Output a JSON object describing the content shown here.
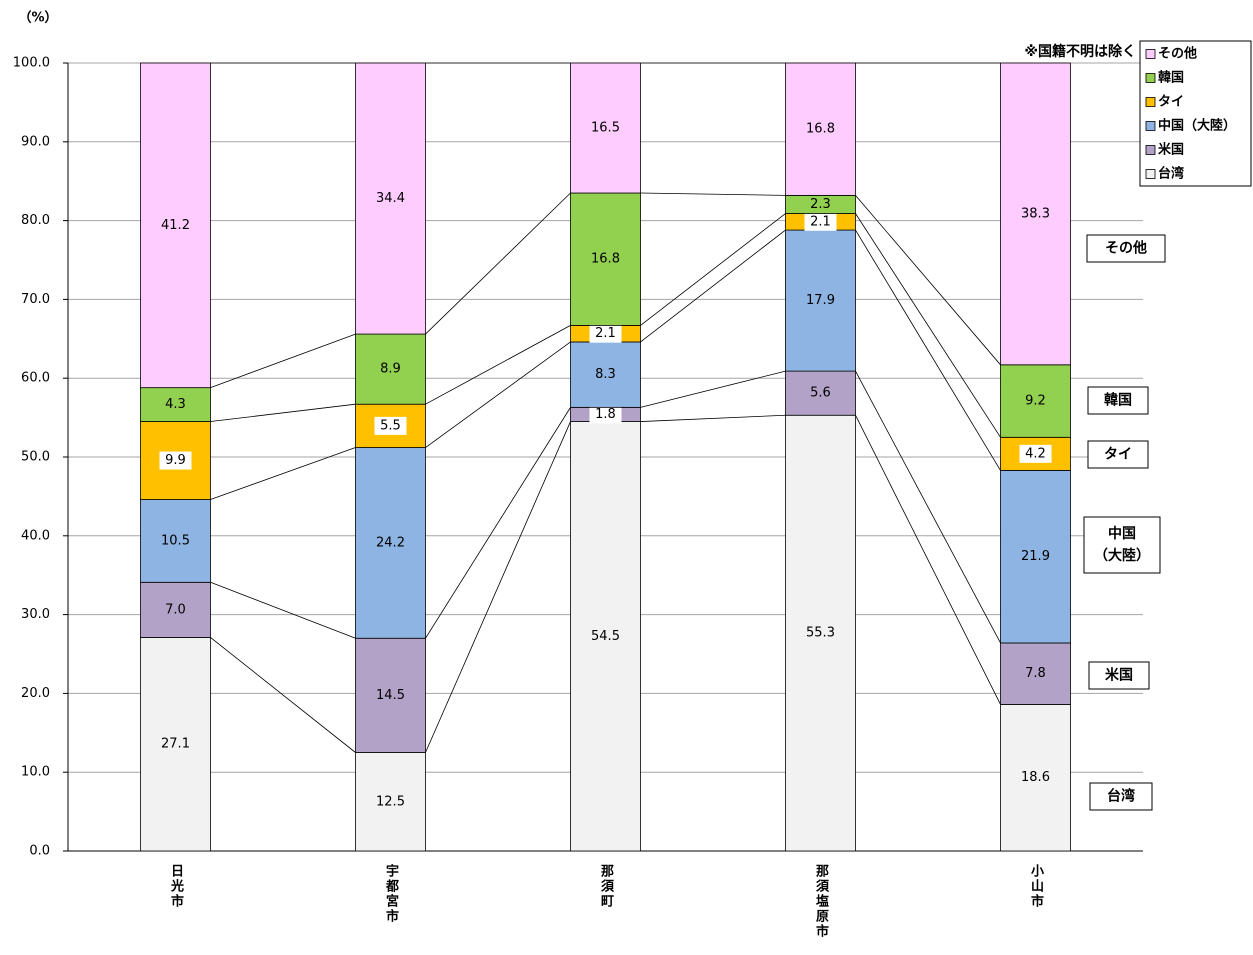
{
  "chart_data": {
    "type": "stacked_bar",
    "y_unit_label": "（%）",
    "note": "※国籍不明は除く",
    "categories": [
      "日光市",
      "宇都宮市",
      "那須町",
      "那須塩原市",
      "小山市"
    ],
    "series": [
      {
        "name": "台湾",
        "color": "#f2f2f2",
        "values": [
          27.1,
          12.5,
          54.5,
          55.3,
          18.6
        ],
        "value_labels": [
          "27.1",
          "12.5",
          "54.5",
          "55.3",
          "18.6"
        ]
      },
      {
        "name": "米国",
        "color": "#b3a2c7",
        "values": [
          7.0,
          14.5,
          1.8,
          5.6,
          7.8
        ],
        "value_labels": [
          "7.0",
          "14.5",
          "1.8",
          "5.6",
          "7.8"
        ]
      },
      {
        "name": "中国（大陸）",
        "color": "#8eb4e3",
        "values": [
          10.5,
          24.2,
          8.3,
          17.9,
          21.9
        ],
        "value_labels": [
          "10.5",
          "24.2",
          "8.3",
          "17.9",
          "21.9"
        ]
      },
      {
        "name": "タイ",
        "color": "#ffc000",
        "values": [
          9.9,
          5.5,
          2.1,
          2.1,
          4.2
        ],
        "value_labels": [
          "9.9",
          "5.5",
          "2.1",
          "2.1",
          "4.2"
        ]
      },
      {
        "name": "韓国",
        "color": "#92d050",
        "values": [
          4.3,
          8.9,
          16.8,
          2.3,
          9.2
        ],
        "value_labels": [
          "4.3",
          "8.9",
          "16.8",
          "2.3",
          "9.2"
        ]
      },
      {
        "name": "その他",
        "color": "#ffccff",
        "values": [
          41.2,
          34.4,
          16.5,
          16.8,
          38.3
        ],
        "value_labels": [
          "41.2",
          "34.4",
          "16.5",
          "16.8",
          "38.3"
        ]
      }
    ],
    "side_labels": [
      [
        "その他"
      ],
      [
        "韓国"
      ],
      [
        "タイ"
      ],
      [
        "中国",
        "（大陸）"
      ],
      [
        "米国"
      ],
      [
        "台湾"
      ]
    ],
    "ylim": [
      0,
      100
    ],
    "yticks": [
      {
        "value": 0,
        "label": "0.0"
      },
      {
        "value": 10,
        "label": "10.0"
      },
      {
        "value": 20,
        "label": "20.0"
      },
      {
        "value": 30,
        "label": "30.0"
      },
      {
        "value": 40,
        "label": "40.0"
      },
      {
        "value": 50,
        "label": "50.0"
      },
      {
        "value": 60,
        "label": "60.0"
      },
      {
        "value": 70,
        "label": "70.0"
      },
      {
        "value": 80,
        "label": "80.0"
      },
      {
        "value": 90,
        "label": "90.0"
      },
      {
        "value": 100,
        "label": "100.0"
      }
    ],
    "grid": true
  }
}
